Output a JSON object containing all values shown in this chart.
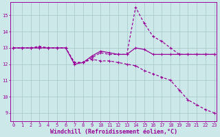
{
  "background_color": "#cce8e8",
  "grid_color": "#aacccc",
  "line_color": "#990099",
  "x_ticks": [
    0,
    1,
    2,
    3,
    4,
    5,
    6,
    7,
    8,
    9,
    10,
    11,
    12,
    13,
    14,
    15,
    16,
    17,
    18,
    19,
    20,
    21,
    22,
    23
  ],
  "ylim": [
    8.5,
    15.8
  ],
  "xlim": [
    -0.3,
    23.3
  ],
  "xlabel": "Windchill (Refroidissement éolien,°C)",
  "line1_x": [
    0,
    1,
    2,
    3,
    4,
    5,
    6,
    7,
    8,
    9,
    10,
    11,
    12,
    13,
    14,
    15,
    16,
    17,
    18,
    19,
    20,
    21,
    22,
    23
  ],
  "line1_y": [
    13.0,
    13.0,
    13.0,
    13.0,
    13.0,
    13.0,
    13.0,
    12.0,
    12.1,
    12.5,
    12.8,
    12.7,
    12.6,
    12.6,
    13.0,
    12.9,
    12.6,
    12.6,
    12.6,
    12.6,
    12.6,
    12.6,
    12.6,
    12.6
  ],
  "line2_x": [
    0,
    1,
    2,
    3,
    4,
    5,
    6,
    7,
    8,
    9,
    10,
    11,
    12,
    13,
    14,
    15,
    16,
    17,
    18,
    19,
    20,
    21,
    22,
    23
  ],
  "line2_y": [
    13.0,
    13.0,
    13.0,
    13.1,
    13.0,
    13.0,
    13.0,
    12.1,
    12.1,
    12.4,
    12.7,
    12.6,
    12.6,
    12.6,
    15.5,
    14.5,
    13.7,
    13.4,
    13.0,
    12.6,
    12.6,
    12.6,
    12.6,
    12.6
  ],
  "line3_x": [
    0,
    1,
    2,
    3,
    4,
    5,
    6,
    7,
    8,
    9,
    10,
    11,
    12,
    13,
    14,
    15,
    16,
    17,
    18,
    19,
    20,
    21,
    22,
    23
  ],
  "line3_y": [
    13.0,
    13.0,
    13.0,
    13.0,
    13.0,
    13.0,
    13.0,
    12.1,
    12.1,
    12.3,
    12.2,
    12.2,
    12.1,
    12.0,
    11.9,
    11.6,
    11.4,
    11.2,
    11.0,
    10.4,
    9.8,
    9.5,
    9.2,
    9.0
  ],
  "yticks": [
    9,
    10,
    11,
    12,
    13,
    14,
    15
  ],
  "tick_fontsize": 5.0,
  "axis_fontsize": 6.0
}
